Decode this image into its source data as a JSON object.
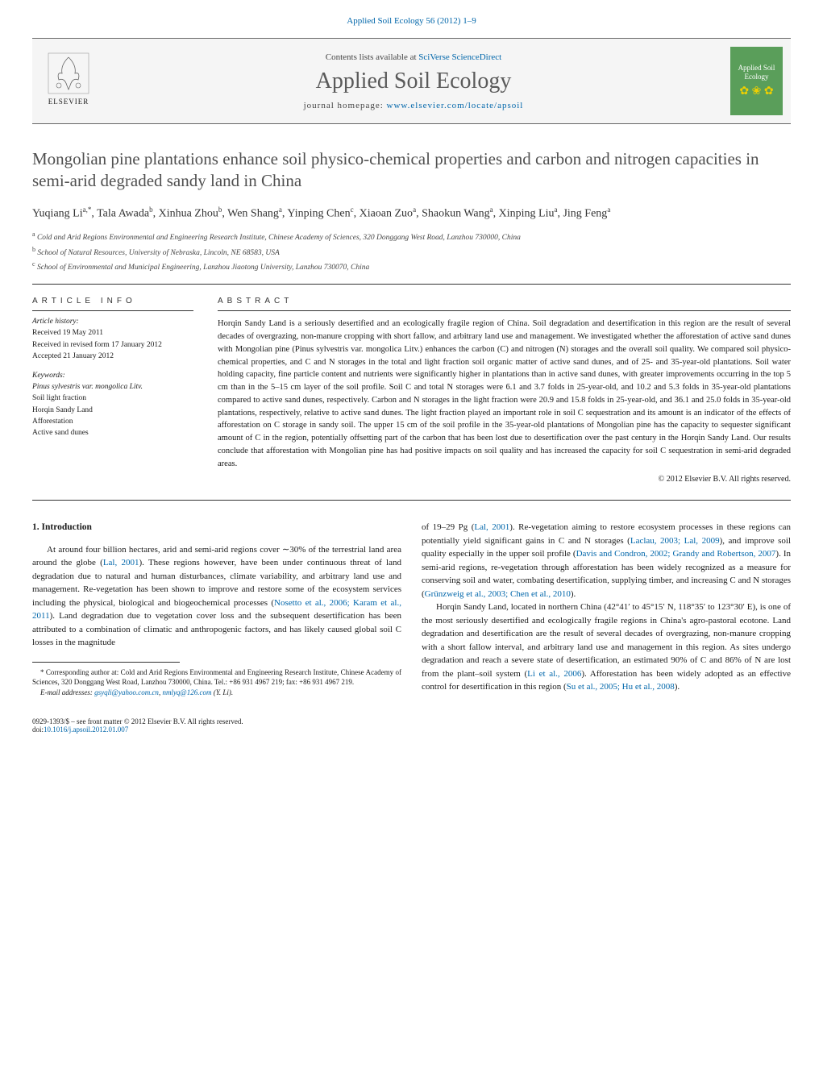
{
  "header": {
    "citation": "Applied Soil Ecology 56 (2012) 1–9",
    "contents_label": "Contents lists available at",
    "contents_link": "SciVerse ScienceDirect",
    "journal_name": "Applied Soil Ecology",
    "homepage_label": "journal homepage:",
    "homepage_url": "www.elsevier.com/locate/apsoil",
    "publisher": "ELSEVIER",
    "cover_title": "Applied Soil Ecology"
  },
  "article": {
    "title": "Mongolian pine plantations enhance soil physico-chemical properties and carbon and nitrogen capacities in semi-arid degraded sandy land in China",
    "authors_html": "Yuqiang Li<sup>a,*</sup>, Tala Awada<sup>b</sup>, Xinhua Zhou<sup>b</sup>, Wen Shang<sup>a</sup>, Yinping Chen<sup>c</sup>, Xiaoan Zuo<sup>a</sup>, Shaokun Wang<sup>a</sup>, Xinping Liu<sup>a</sup>, Jing Feng<sup>a</sup>",
    "affiliations": [
      {
        "sup": "a",
        "text": "Cold and Arid Regions Environmental and Engineering Research Institute, Chinese Academy of Sciences, 320 Donggang West Road, Lanzhou 730000, China"
      },
      {
        "sup": "b",
        "text": "School of Natural Resources, University of Nebraska, Lincoln, NE 68583, USA"
      },
      {
        "sup": "c",
        "text": "School of Environmental and Municipal Engineering, Lanzhou Jiaotong University, Lanzhou 730070, China"
      }
    ]
  },
  "info": {
    "header": "article info",
    "history_title": "Article history:",
    "received": "Received 19 May 2011",
    "revised": "Received in revised form 17 January 2012",
    "accepted": "Accepted 21 January 2012",
    "keywords_title": "Keywords:",
    "keywords": [
      "Pinus sylvestris var. mongolica Litv.",
      "Soil light fraction",
      "Horqin Sandy Land",
      "Afforestation",
      "Active sand dunes"
    ]
  },
  "abstract": {
    "header": "abstract",
    "text": "Horqin Sandy Land is a seriously desertified and an ecologically fragile region of China. Soil degradation and desertification in this region are the result of several decades of overgrazing, non-manure cropping with short fallow, and arbitrary land use and management. We investigated whether the afforestation of active sand dunes with Mongolian pine (Pinus sylvestris var. mongolica Litv.) enhances the carbon (C) and nitrogen (N) storages and the overall soil quality. We compared soil physico-chemical properties, and C and N storages in the total and light fraction soil organic matter of active sand dunes, and of 25- and 35-year-old plantations. Soil water holding capacity, fine particle content and nutrients were significantly higher in plantations than in active sand dunes, with greater improvements occurring in the top 5 cm than in the 5–15 cm layer of the soil profile. Soil C and total N storages were 6.1 and 3.7 folds in 25-year-old, and 10.2 and 5.3 folds in 35-year-old plantations compared to active sand dunes, respectively. Carbon and N storages in the light fraction were 20.9 and 15.8 folds in 25-year-old, and 36.1 and 25.0 folds in 35-year-old plantations, respectively, relative to active sand dunes. The light fraction played an important role in soil C sequestration and its amount is an indicator of the effects of afforestation on C storage in sandy soil. The upper 15 cm of the soil profile in the 35-year-old plantations of Mongolian pine has the capacity to sequester significant amount of C in the region, potentially offsetting part of the carbon that has been lost due to desertification over the past century in the Horqin Sandy Land. Our results conclude that afforestation with Mongolian pine has had positive impacts on soil quality and has increased the capacity for soil C sequestration in semi-arid degraded areas.",
    "copyright": "© 2012 Elsevier B.V. All rights reserved."
  },
  "body": {
    "section_heading": "1. Introduction",
    "left_col_p1_a": "At around four billion hectares, arid and semi-arid regions cover ∼30% of the terrestrial land area around the globe (",
    "left_col_p1_ref1": "Lal, 2001",
    "left_col_p1_b": "). These regions however, have been under continuous threat of land degradation due to natural and human disturbances, climate variability, and arbitrary land use and management. Re-vegetation has been shown to improve and restore some of the ecosystem services including the physical, biological and biogeochemical processes (",
    "left_col_p1_ref2": "Nosetto et al., 2006; Karam et al., 2011",
    "left_col_p1_c": "). Land degradation due to vegetation cover loss and the subsequent desertification has been attributed to a combination of climatic and anthropogenic factors, and has likely caused global soil C losses in the magnitude",
    "right_col_p1_a": "of 19–29 Pg (",
    "right_col_p1_ref1": "Lal, 2001",
    "right_col_p1_b": "). Re-vegetation aiming to restore ecosystem processes in these regions can potentially yield significant gains in C and N storages (",
    "right_col_p1_ref2": "Laclau, 2003; Lal, 2009",
    "right_col_p1_c": "), and improve soil quality especially in the upper soil profile (",
    "right_col_p1_ref3": "Davis and Condron, 2002; Grandy and Robertson, 2007",
    "right_col_p1_d": "). In semi-arid regions, re-vegetation through afforestation has been widely recognized as a measure for conserving soil and water, combating desertification, supplying timber, and increasing C and N storages (",
    "right_col_p1_ref4": "Grünzweig et al., 2003; Chen et al., 2010",
    "right_col_p1_e": ").",
    "right_col_p2_a": "Horqin Sandy Land, located in northern China (42°41′ to 45°15′ N, 118°35′ to 123°30′ E), is one of the most seriously desertified and ecologically fragile regions in China's agro-pastoral ecotone. Land degradation and desertification are the result of several decades of overgrazing, non-manure cropping with a short fallow interval, and arbitrary land use and management in this region. As sites undergo degradation and reach a severe state of desertification, an estimated 90% of C and 86% of N are lost from the plant–soil system (",
    "right_col_p2_ref1": "Li et al., 2006",
    "right_col_p2_b": "). Afforestation has been widely adopted as an effective control for desertification in this region (",
    "right_col_p2_ref2": "Su et al., 2005; Hu et al., 2008",
    "right_col_p2_c": ")."
  },
  "footnotes": {
    "corresponding": "* Corresponding author at: Cold and Arid Regions Environmental and Engineering Research Institute, Chinese Academy of Sciences, 320 Donggang West Road, Lanzhou 730000, China. Tel.: +86 931 4967 219; fax: +86 931 4967 219.",
    "email_label": "E-mail addresses:",
    "email1": "gsyqli@yahoo.com.cn",
    "email2": "nmlyq@126.com",
    "email_name": "(Y. Li)."
  },
  "footer": {
    "issn": "0929-1393/$ – see front matter © 2012 Elsevier B.V. All rights reserved.",
    "doi_label": "doi:",
    "doi": "10.1016/j.apsoil.2012.01.007"
  },
  "colors": {
    "link": "#0066aa",
    "title": "#505050",
    "cover_bg": "#5a9e5a",
    "cover_accent": "#f0d000"
  }
}
